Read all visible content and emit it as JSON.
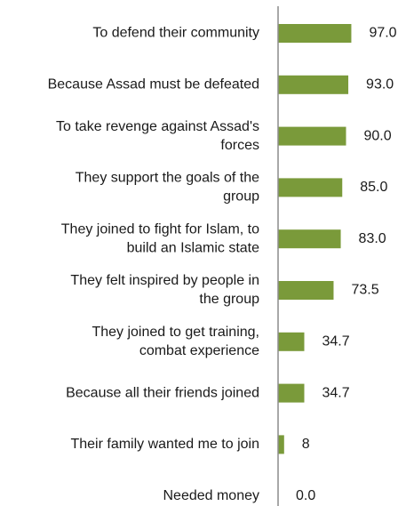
{
  "chart_data": {
    "type": "bar",
    "orientation": "horizontal",
    "categories": [
      "To defend their community",
      "Because Assad must be defeated",
      "To take revenge against Assad's forces",
      "They support the goals of the group",
      "They joined to fight for Islam, to build an Islamic state",
      "They felt inspired by people in the group",
      "They joined to get training, combat experience",
      "Because all their friends joined",
      "Their family wanted me to join",
      "Needed money"
    ],
    "category_lines": [
      [
        "To defend their community"
      ],
      [
        "Because Assad must be defeated"
      ],
      [
        "To take revenge against Assad's",
        "forces"
      ],
      [
        "They support the goals of the",
        "group"
      ],
      [
        "They joined to fight for Islam, to",
        "build an Islamic state"
      ],
      [
        "They felt inspired by people in",
        "the group"
      ],
      [
        "They joined to get training,",
        "combat experience"
      ],
      [
        "Because all their friends joined"
      ],
      [
        "Their family wanted me to join"
      ],
      [
        "Needed money"
      ]
    ],
    "values": [
      97.0,
      93.0,
      90.0,
      85.0,
      83.0,
      73.5,
      34.7,
      34.7,
      8,
      0.0
    ],
    "value_labels": [
      "97.0",
      "93.0",
      "90.0",
      "85.0",
      "83.0",
      "73.5",
      "34.7",
      "34.7",
      "8",
      "0.0"
    ],
    "xlim": [
      0,
      100
    ],
    "bar_color": "#7a9a3a",
    "axis_color": "#8c8c8c",
    "grid": false,
    "legend": "none"
  }
}
